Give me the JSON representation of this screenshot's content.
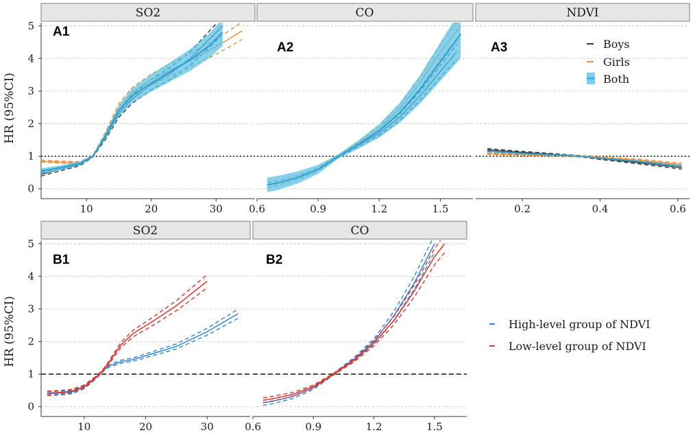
{
  "y_axis_label": "HR (95%CI)",
  "colors": {
    "boys": "#2f3a3a",
    "girls": "#e8913a",
    "both": "#2a9fd6",
    "both_fill": "#5bc3e8",
    "high": "#2b86d9",
    "low": "#e0332b"
  },
  "chart_data": [
    {
      "id": "A1",
      "panel_label": "A1",
      "strip": "SO2",
      "type": "line",
      "xlim": [
        3,
        36
      ],
      "ylim": [
        -0.3,
        5.1
      ],
      "x_ticks": [
        10,
        20,
        30
      ],
      "y_ticks": [
        0,
        1,
        2,
        3,
        4,
        5
      ],
      "reference_line": 1,
      "series": [
        {
          "name": "Boys",
          "x": [
            3,
            6,
            9,
            11,
            13,
            15,
            17,
            20,
            23,
            26,
            29,
            31
          ],
          "y": [
            0.45,
            0.6,
            0.75,
            1.0,
            1.6,
            2.3,
            2.75,
            3.2,
            3.55,
            4.0,
            4.6,
            5.0
          ]
        },
        {
          "name": "Girls",
          "x": [
            3,
            6,
            9,
            11,
            13,
            15,
            17,
            20,
            23,
            26,
            29,
            32,
            34
          ],
          "y": [
            0.85,
            0.82,
            0.8,
            1.0,
            1.7,
            2.5,
            2.95,
            3.35,
            3.65,
            3.95,
            4.25,
            4.6,
            4.85
          ]
        },
        {
          "name": "Both",
          "x": [
            3,
            6,
            9,
            11,
            13,
            15,
            17,
            20,
            23,
            26,
            29,
            31
          ],
          "y": [
            0.55,
            0.65,
            0.78,
            1.0,
            1.65,
            2.4,
            2.85,
            3.25,
            3.6,
            3.95,
            4.4,
            4.8
          ],
          "ci_width": 0.25
        }
      ]
    },
    {
      "id": "A2",
      "panel_label": "A2",
      "strip": "CO",
      "type": "line",
      "xlim": [
        0.6,
        1.66
      ],
      "ylim": [
        -0.3,
        5.1
      ],
      "x_ticks": [
        0.6,
        0.9,
        1.2,
        1.5
      ],
      "reference_line": 1,
      "series": [
        {
          "name": "Boys",
          "x": [
            0.65,
            0.7,
            0.8,
            0.9,
            1.0,
            1.1,
            1.2,
            1.3,
            1.4,
            1.5,
            1.58
          ],
          "y": [
            0.12,
            0.18,
            0.35,
            0.6,
            1.0,
            1.35,
            1.7,
            2.2,
            2.85,
            3.6,
            4.2
          ]
        },
        {
          "name": "Girls",
          "x": [
            0.65,
            0.7,
            0.8,
            0.9,
            1.0,
            1.1,
            1.2,
            1.3,
            1.4,
            1.5,
            1.6
          ],
          "y": [
            0.12,
            0.18,
            0.35,
            0.6,
            1.0,
            1.4,
            1.85,
            2.45,
            3.25,
            4.2,
            5.0
          ]
        },
        {
          "name": "Both",
          "x": [
            0.65,
            0.7,
            0.8,
            0.9,
            1.0,
            1.1,
            1.2,
            1.3,
            1.4,
            1.5,
            1.6
          ],
          "y": [
            0.12,
            0.18,
            0.35,
            0.6,
            1.0,
            1.37,
            1.78,
            2.33,
            3.05,
            3.9,
            4.75
          ],
          "ci_width": 0.45
        }
      ]
    },
    {
      "id": "A3",
      "panel_label": "A3",
      "strip": "NDVI",
      "type": "line",
      "xlim": [
        0.08,
        0.63
      ],
      "ylim": [
        -0.3,
        5.1
      ],
      "x_ticks": [
        0.2,
        0.4,
        0.6
      ],
      "reference_line": 1,
      "series": [
        {
          "name": "Boys",
          "x": [
            0.11,
            0.2,
            0.3,
            0.35,
            0.4,
            0.5,
            0.61
          ],
          "y": [
            1.2,
            1.12,
            1.04,
            1.0,
            0.93,
            0.8,
            0.65
          ]
        },
        {
          "name": "Girls",
          "x": [
            0.11,
            0.2,
            0.3,
            0.35,
            0.4,
            0.5,
            0.61
          ],
          "y": [
            1.08,
            1.05,
            1.02,
            1.0,
            0.96,
            0.88,
            0.75
          ]
        },
        {
          "name": "Both",
          "x": [
            0.11,
            0.2,
            0.3,
            0.35,
            0.4,
            0.5,
            0.61
          ],
          "y": [
            1.15,
            1.09,
            1.03,
            1.0,
            0.94,
            0.84,
            0.7
          ],
          "ci_width": 0.06
        }
      ],
      "legend": [
        {
          "label": "Boys",
          "key": "boys"
        },
        {
          "label": "Girls",
          "key": "girls"
        },
        {
          "label": "Both",
          "key": "both"
        }
      ]
    },
    {
      "id": "B1",
      "panel_label": "B1",
      "strip": "SO2",
      "type": "line",
      "xlim": [
        3,
        37
      ],
      "ylim": [
        -0.3,
        5.1
      ],
      "x_ticks": [
        10,
        20,
        30
      ],
      "y_ticks": [
        0,
        1,
        2,
        3,
        4,
        5
      ],
      "reference_line": 1,
      "series": [
        {
          "name": "High-level group of NDVI",
          "x": [
            4,
            6,
            8,
            10,
            12,
            13,
            14,
            16,
            18,
            21,
            25,
            30,
            35
          ],
          "y": [
            0.4,
            0.42,
            0.45,
            0.6,
            0.9,
            1.1,
            1.25,
            1.38,
            1.45,
            1.62,
            1.85,
            2.3,
            2.85
          ]
        },
        {
          "name": "Low-level group of NDVI",
          "x": [
            4,
            6,
            8,
            10,
            12,
            13,
            14,
            16,
            18,
            21,
            25,
            30
          ],
          "y": [
            0.42,
            0.44,
            0.48,
            0.62,
            0.92,
            1.1,
            1.35,
            1.9,
            2.25,
            2.6,
            3.1,
            3.85
          ]
        }
      ]
    },
    {
      "id": "B2",
      "panel_label": "B2",
      "strip": "CO",
      "type": "line",
      "xlim": [
        0.6,
        1.66
      ],
      "ylim": [
        -0.3,
        5.1
      ],
      "x_ticks": [
        0.6,
        0.9,
        1.2,
        1.5
      ],
      "reference_line": 1,
      "series": [
        {
          "name": "High-level group of NDVI",
          "x": [
            0.65,
            0.7,
            0.8,
            0.9,
            1.0,
            1.1,
            1.2,
            1.3,
            1.4,
            1.5
          ],
          "y": [
            0.12,
            0.17,
            0.32,
            0.58,
            1.0,
            1.45,
            2.0,
            2.8,
            3.8,
            5.0
          ]
        },
        {
          "name": "Low-level group of NDVI",
          "x": [
            0.65,
            0.7,
            0.8,
            0.9,
            1.0,
            1.1,
            1.2,
            1.3,
            1.4,
            1.5,
            1.55
          ],
          "y": [
            0.2,
            0.25,
            0.38,
            0.62,
            1.0,
            1.42,
            1.95,
            2.65,
            3.55,
            4.6,
            5.0
          ]
        }
      ]
    }
  ],
  "legend_B": [
    {
      "label": "High-level group of NDVI",
      "key": "high"
    },
    {
      "label": "Low-level group of NDVI",
      "key": "low"
    }
  ]
}
